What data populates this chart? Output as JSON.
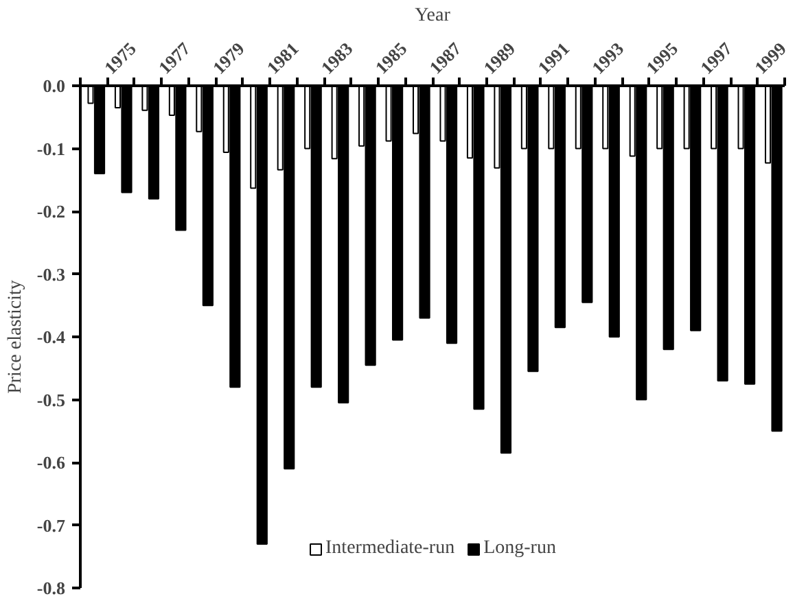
{
  "chart_data": {
    "type": "bar",
    "xlabel": "Year",
    "ylabel": "Price elasticity",
    "x": [
      1974.5,
      1975.5,
      1976.5,
      1977.5,
      1978.5,
      1979.5,
      1980.5,
      1981.5,
      1982.5,
      1983.5,
      1984.5,
      1985.5,
      1986.5,
      1987.5,
      1988.5,
      1989.5,
      1990.5,
      1991.5,
      1992.5,
      1993.5,
      1994.5,
      1995.5,
      1996.5,
      1997.5,
      1998.5,
      1999.5
    ],
    "xlim": [
      1974,
      2000
    ],
    "xticks": [
      {
        "value": 1974,
        "label": null
      },
      1975,
      {
        "value": 1976,
        "label": null
      },
      1977,
      {
        "value": 1978,
        "label": null
      },
      1979,
      {
        "value": 1980,
        "label": null
      },
      1981,
      {
        "value": 1982,
        "label": null
      },
      1983,
      {
        "value": 1984,
        "label": null
      },
      1985,
      {
        "value": 1986,
        "label": null
      },
      1987,
      {
        "value": 1988,
        "label": null
      },
      1989,
      {
        "value": 1990,
        "label": null
      },
      1991,
      {
        "value": 1992,
        "label": null
      },
      1993,
      {
        "value": 1994,
        "label": null
      },
      1995,
      {
        "value": 1996,
        "label": null
      },
      1997,
      {
        "value": 1998,
        "label": null
      },
      1999,
      {
        "value": 2000,
        "label": null
      }
    ],
    "ylim": [
      -0.8,
      0.0
    ],
    "yticks": [
      {
        "value": 0,
        "label": "0.0"
      },
      -0.1,
      -0.2,
      -0.3,
      -0.4,
      -0.5,
      -0.6,
      -0.7,
      -0.8
    ],
    "series": [
      {
        "name": "Intermediate-run",
        "color": "#ffffff",
        "values": [
          -0.028,
          -0.035,
          -0.039,
          -0.047,
          -0.073,
          -0.106,
          -0.163,
          -0.134,
          -0.1,
          -0.116,
          -0.096,
          -0.088,
          -0.076,
          -0.088,
          -0.115,
          -0.131,
          -0.1,
          -0.1,
          -0.1,
          -0.1,
          -0.112,
          -0.1,
          -0.1,
          -0.1,
          -0.1,
          -0.123
        ]
      },
      {
        "name": "Long-run",
        "color": "#000000",
        "values": [
          -0.14,
          -0.17,
          -0.18,
          -0.23,
          -0.35,
          -0.48,
          -0.73,
          -0.61,
          -0.48,
          -0.505,
          -0.445,
          -0.405,
          -0.37,
          -0.41,
          -0.515,
          -0.585,
          -0.455,
          -0.385,
          -0.345,
          -0.4,
          -0.5,
          -0.42,
          -0.39,
          -0.47,
          -0.475,
          -0.55
        ]
      }
    ],
    "grid": false,
    "legend": "bottom"
  }
}
